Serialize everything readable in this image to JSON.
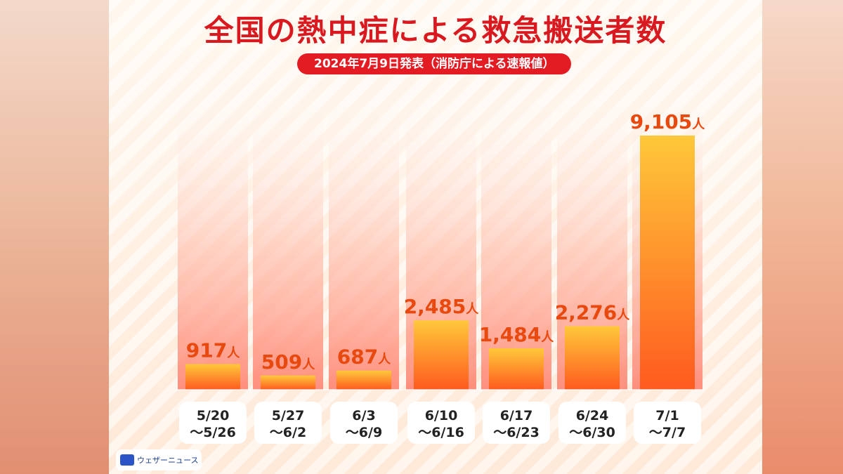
{
  "title": "全国の熱中症による救急搬送者数",
  "subtitle": "2024年7月9日発表（消防庁による速報値）",
  "brand": "ウェザーニュース",
  "colors": {
    "title": "#d8191f",
    "pill": "#e31b23",
    "bar_top": "#ffc83a",
    "bar_bottom": "#ff5a1f",
    "label": "#e8490f"
  },
  "chart_data": {
    "type": "bar",
    "unit": "人",
    "categories": [
      [
        "5/20",
        "～5/26"
      ],
      [
        "5/27",
        "～6/2"
      ],
      [
        "6/3",
        "～6/9"
      ],
      [
        "6/10",
        "～6/16"
      ],
      [
        "6/17",
        "～6/23"
      ],
      [
        "6/24",
        "～6/30"
      ],
      [
        "7/1",
        "～7/7"
      ]
    ],
    "values": [
      917,
      509,
      687,
      2485,
      1484,
      2276,
      9105
    ],
    "value_labels": [
      "917",
      "509",
      "687",
      "2,485",
      "1,484",
      "2,276",
      "9,105"
    ],
    "ylim": [
      0,
      9200
    ],
    "grid": false,
    "legend": "none"
  }
}
